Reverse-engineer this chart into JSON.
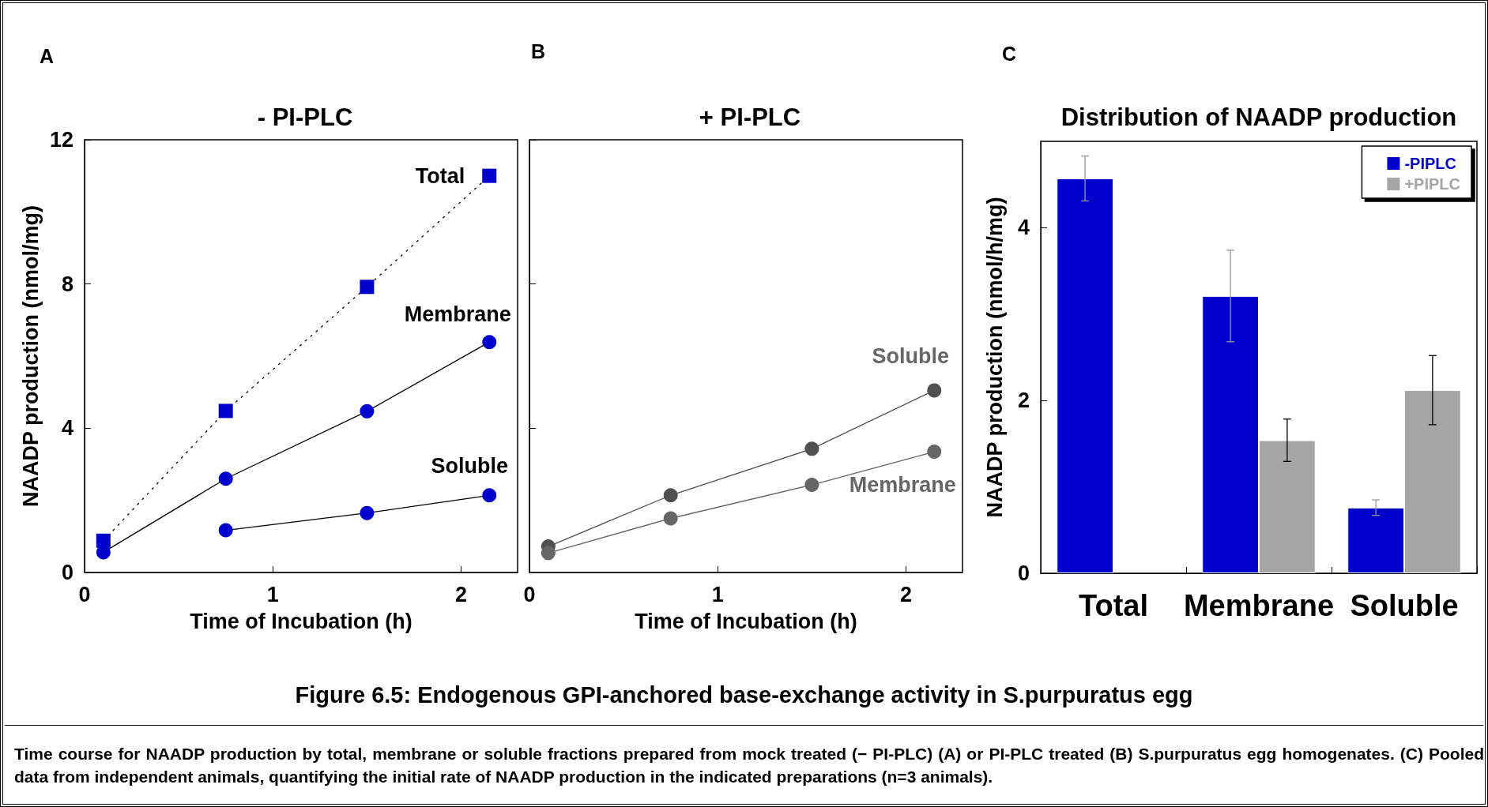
{
  "chart_data": [
    {
      "type": "line",
      "title": "- PI-PLC",
      "xlabel": "Time of Incubation (h)",
      "ylabel": "NAADP production (nmol/mg)",
      "xlim": [
        0,
        2.3
      ],
      "xticks": [
        0,
        1,
        2
      ],
      "ylim": [
        0,
        12
      ],
      "yticks": [
        0,
        4,
        8,
        12
      ],
      "grid": false,
      "legend": false,
      "annotations": [
        "A"
      ],
      "x": [
        0.1,
        0.75,
        1.5,
        2.15
      ],
      "series": [
        {
          "name": "Total",
          "color": "#0000cc",
          "marker": "square",
          "line_style": "dotted",
          "values": [
            0.88,
            4.48,
            7.92,
            11.0
          ]
        },
        {
          "name": "Membrane",
          "color": "#0000cc",
          "marker": "circle",
          "line_style": "solid",
          "values": [
            0.56,
            2.6,
            4.47,
            6.39
          ]
        },
        {
          "name": "Soluble",
          "color": "#0000cc",
          "marker": "circle",
          "line_style": "solid",
          "values": [
            null,
            1.17,
            1.65,
            2.14
          ]
        }
      ]
    },
    {
      "type": "line",
      "title": "+ PI-PLC",
      "xlabel": "Time of Incubation (h)",
      "xlim": [
        0,
        2.3
      ],
      "xticks": [
        0,
        1,
        2
      ],
      "ylim": [
        0,
        12
      ],
      "yticks": [
        0,
        4,
        8,
        12
      ],
      "tick_labels": "x",
      "grid": false,
      "legend": false,
      "annotations": [
        "B"
      ],
      "x": [
        0.1,
        0.75,
        1.5,
        2.15
      ],
      "series": [
        {
          "name": "Soluble",
          "color": "#505050",
          "marker": "circle",
          "line_style": "solid",
          "values": [
            0.72,
            2.14,
            3.43,
            5.05
          ]
        },
        {
          "name": "Membrane",
          "color": "#666666",
          "marker": "circle",
          "line_style": "solid",
          "values": [
            0.54,
            1.5,
            2.43,
            3.35
          ]
        }
      ]
    },
    {
      "type": "bar",
      "title": "Distribution of NAADP production",
      "ylabel": "NAADP production (nmol/h/mg)",
      "ylim": [
        0,
        5
      ],
      "yticks": [
        0,
        2,
        4
      ],
      "grid": false,
      "legend": "top right",
      "annotations": [
        "C",
        "Figure 6.5: Endogenous GPI-anchored base-exchange activity in S.purpuratus egg",
        "Time course for NAADP production by total, membrane or soluble fractions prepared from mock treated (− PI-PLC) (A) or PI-PLC treated (B) S.purpuratus egg homogenates. (C) Pooled data from independent animals, quantifying the initial rate of NAADP production in the indicated preparations (n=3 animals)."
      ],
      "categories": [
        "Total",
        "Membrane",
        "Soluble"
      ],
      "series": [
        {
          "name": "-PIPLC",
          "color": "#0000cc",
          "values": [
            4.57,
            3.21,
            0.76
          ],
          "errors": [
            0.26,
            0.53,
            0.09
          ]
        },
        {
          "name": "+PIPLC",
          "color": "#a6a6a6",
          "values": [
            null,
            1.54,
            2.12
          ],
          "errors": [
            null,
            0.245,
            0.4
          ]
        }
      ]
    }
  ]
}
